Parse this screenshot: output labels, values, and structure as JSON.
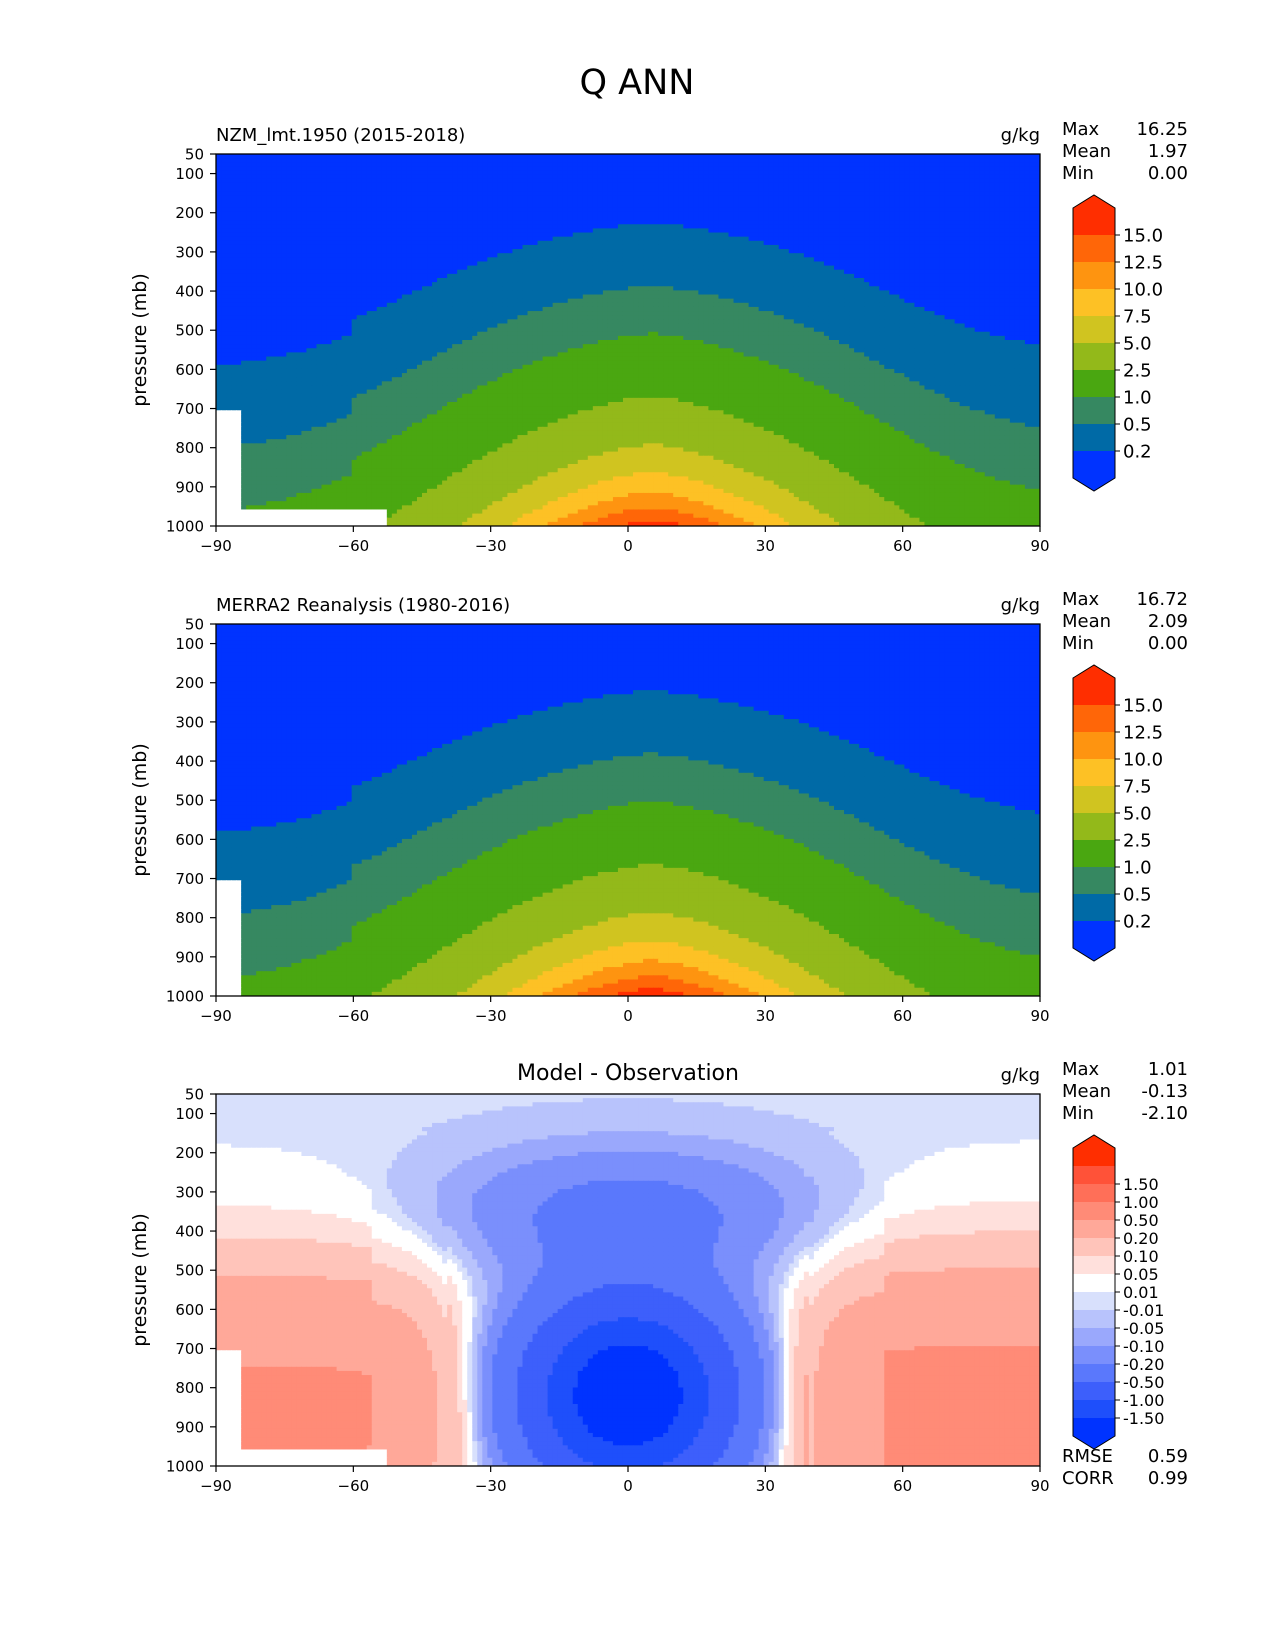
{
  "figure": {
    "title": "Q ANN"
  },
  "chart_data": [
    {
      "type": "contour",
      "id": "model",
      "title": "NZM_lmt.1950 (2015-2018)",
      "center_title": "",
      "units": "g/kg",
      "ylabel": "pressure (mb)",
      "xlim": [
        -90,
        90
      ],
      "ylim": [
        1000,
        50
      ],
      "x_ticks": [
        -90,
        -60,
        -30,
        0,
        30,
        60,
        90
      ],
      "x_tick_labels": [
        "−90",
        "−60",
        "−30",
        "0",
        "30",
        "60",
        "90"
      ],
      "y_ticks": [
        50,
        100,
        200,
        300,
        400,
        500,
        600,
        700,
        800,
        900,
        1000
      ],
      "stats": [
        {
          "label": "Max",
          "value": "16.25"
        },
        {
          "label": "Mean",
          "value": "1.97"
        },
        {
          "label": "Min",
          "value": "0.00"
        }
      ],
      "bottom_stats": [],
      "colorbar": {
        "levels": [
          "0.2",
          "0.5",
          "1.0",
          "2.5",
          "5.0",
          "7.5",
          "10.0",
          "12.5",
          "15.0"
        ],
        "colors": [
          "#0033ff",
          "#006aa6",
          "#368861",
          "#4aa711",
          "#93b91a",
          "#d0c420",
          "#fdc125",
          "#fe9410",
          "#ff6608",
          "#ff2e00"
        ]
      },
      "field": {
        "kind": "humidity",
        "amplitude": 16.25,
        "center_lat": 5,
        "missing_lowlat_sh": true,
        "note": "zonal-mean specific humidity, max near surface at equator"
      }
    },
    {
      "type": "contour",
      "id": "obs",
      "title": "MERRA2 Reanalysis (1980-2016)",
      "center_title": "",
      "units": "g/kg",
      "ylabel": "pressure (mb)",
      "xlim": [
        -90,
        90
      ],
      "ylim": [
        1000,
        50
      ],
      "x_ticks": [
        -90,
        -60,
        -30,
        0,
        30,
        60,
        90
      ],
      "x_tick_labels": [
        "−90",
        "−60",
        "−30",
        "0",
        "30",
        "60",
        "90"
      ],
      "y_ticks": [
        50,
        100,
        200,
        300,
        400,
        500,
        600,
        700,
        800,
        900,
        1000
      ],
      "stats": [
        {
          "label": "Max",
          "value": "16.72"
        },
        {
          "label": "Mean",
          "value": "2.09"
        },
        {
          "label": "Min",
          "value": "0.00"
        }
      ],
      "bottom_stats": [],
      "colorbar": {
        "levels": [
          "0.2",
          "0.5",
          "1.0",
          "2.5",
          "5.0",
          "7.5",
          "10.0",
          "12.5",
          "15.0"
        ],
        "colors": [
          "#0033ff",
          "#006aa6",
          "#368861",
          "#4aa711",
          "#93b91a",
          "#d0c420",
          "#fdc125",
          "#fe9410",
          "#ff6608",
          "#ff2e00"
        ]
      },
      "field": {
        "kind": "humidity",
        "amplitude": 16.72,
        "center_lat": 5,
        "missing_lowlat_sh": false,
        "note": "zonal-mean specific humidity, max near surface at equator"
      }
    },
    {
      "type": "contour",
      "id": "diff",
      "title": "",
      "center_title": "Model - Observation",
      "units": "g/kg",
      "ylabel": "pressure (mb)",
      "xlim": [
        -90,
        90
      ],
      "ylim": [
        1000,
        50
      ],
      "x_ticks": [
        -90,
        -60,
        -30,
        0,
        30,
        60,
        90
      ],
      "x_tick_labels": [
        "−90",
        "−60",
        "−30",
        "0",
        "30",
        "60",
        "90"
      ],
      "y_ticks": [
        50,
        100,
        200,
        300,
        400,
        500,
        600,
        700,
        800,
        900,
        1000
      ],
      "stats": [
        {
          "label": "Max",
          "value": "1.01"
        },
        {
          "label": "Mean",
          "value": "-0.13"
        },
        {
          "label": "Min",
          "value": "-2.10"
        }
      ],
      "bottom_stats": [
        {
          "label": "RMSE",
          "value": "0.59"
        },
        {
          "label": "CORR",
          "value": "0.99"
        }
      ],
      "colorbar": {
        "levels": [
          "-1.50",
          "-1.00",
          "-0.50",
          "-0.20",
          "-0.10",
          "-0.05",
          "-0.01",
          "0.01",
          "0.05",
          "0.10",
          "0.20",
          "0.50",
          "1.00",
          "1.50"
        ],
        "colors": [
          "#0033ff",
          "#1e4ffb",
          "#3d5ffb",
          "#5a78fc",
          "#7a8ffc",
          "#9aa8fc",
          "#b8c3fc",
          "#d8e0fc",
          "#ffffff",
          "#ffe0dc",
          "#ffc4ba",
          "#ffa899",
          "#ff8b77",
          "#ff6f58",
          "#ff5238",
          "#ff2e00"
        ]
      },
      "field": {
        "kind": "difference",
        "amplitude": 2.1,
        "missing_lowlat_sh": true,
        "note": "moist bias at high latitudes (~0.5 g/kg), dry bias in tropics (~-1.5 to -2 g/kg)"
      }
    }
  ]
}
